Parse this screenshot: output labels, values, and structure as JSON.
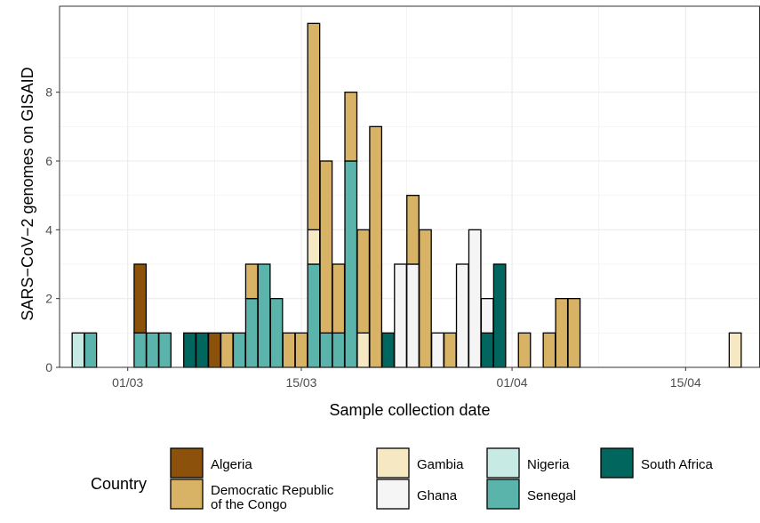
{
  "chart_data": {
    "type": "bar",
    "stacked": true,
    "xlabel": "Sample collection date",
    "ylabel": "SARS−CoV−2 genomes on GISAID",
    "x_ticks": [
      "01/03",
      "15/03",
      "01/04",
      "15/04"
    ],
    "x_tick_days": [
      1,
      15,
      32,
      46
    ],
    "y_ticks": [
      "0",
      "2",
      "4",
      "6",
      "8"
    ],
    "ylim": [
      0,
      10.5
    ],
    "xlim_days": [
      -4.5,
      52
    ],
    "grid": true,
    "legend_position": "bottom",
    "legend_title": "Country",
    "series": [
      {
        "name": "Algeria",
        "color": "#8c510a"
      },
      {
        "name": "Democratic Republic of the Congo",
        "color": "#d8b365"
      },
      {
        "name": "Gambia",
        "color": "#f6e8c3"
      },
      {
        "name": "Ghana",
        "color": "#f5f5f5"
      },
      {
        "name": "Nigeria",
        "color": "#c7eae5"
      },
      {
        "name": "Senegal",
        "color": "#5ab4ac"
      },
      {
        "name": "South Africa",
        "color": "#01665e"
      }
    ],
    "legend_labels": [
      [
        "Algeria"
      ],
      [
        "Democratic Republic",
        "of the Congo"
      ],
      [
        "Gambia"
      ],
      [
        "Ghana"
      ],
      [
        "Nigeria"
      ],
      [
        "Senegal"
      ],
      [
        "South Africa"
      ]
    ],
    "bars": [
      {
        "day": -3,
        "counts": {
          "Nigeria": 1
        }
      },
      {
        "day": -2,
        "counts": {
          "Senegal": 1
        }
      },
      {
        "day": 2,
        "counts": {
          "Senegal": 1,
          "Algeria": 2
        }
      },
      {
        "day": 3,
        "counts": {
          "Senegal": 1
        }
      },
      {
        "day": 4,
        "counts": {
          "Senegal": 1
        }
      },
      {
        "day": 6,
        "counts": {
          "South Africa": 1
        }
      },
      {
        "day": 7,
        "counts": {
          "South Africa": 1
        }
      },
      {
        "day": 8,
        "counts": {
          "Algeria": 1
        }
      },
      {
        "day": 9,
        "counts": {
          "Democratic Republic of the Congo": 1
        }
      },
      {
        "day": 10,
        "counts": {
          "Senegal": 1
        }
      },
      {
        "day": 11,
        "counts": {
          "Senegal": 2,
          "Democratic Republic of the Congo": 1
        }
      },
      {
        "day": 12,
        "counts": {
          "Senegal": 3
        }
      },
      {
        "day": 13,
        "counts": {
          "Senegal": 2
        }
      },
      {
        "day": 14,
        "counts": {
          "Democratic Republic of the Congo": 1
        }
      },
      {
        "day": 15,
        "counts": {
          "Democratic Republic of the Congo": 1
        }
      },
      {
        "day": 16,
        "counts": {
          "Senegal": 3,
          "Gambia": 1,
          "Democratic Republic of the Congo": 6
        }
      },
      {
        "day": 17,
        "counts": {
          "Senegal": 1,
          "Democratic Republic of the Congo": 5
        }
      },
      {
        "day": 18,
        "counts": {
          "Senegal": 1,
          "Democratic Republic of the Congo": 2
        }
      },
      {
        "day": 19,
        "counts": {
          "Senegal": 6,
          "Democratic Republic of the Congo": 2
        }
      },
      {
        "day": 20,
        "counts": {
          "Gambia": 1,
          "Democratic Republic of the Congo": 3
        }
      },
      {
        "day": 21,
        "counts": {
          "Democratic Republic of the Congo": 7
        }
      },
      {
        "day": 22,
        "counts": {
          "South Africa": 1
        }
      },
      {
        "day": 23,
        "counts": {
          "Ghana": 3
        }
      },
      {
        "day": 24,
        "counts": {
          "Ghana": 3,
          "Democratic Republic of the Congo": 2
        }
      },
      {
        "day": 25,
        "counts": {
          "Democratic Republic of the Congo": 4
        }
      },
      {
        "day": 26,
        "counts": {
          "Ghana": 1
        }
      },
      {
        "day": 27,
        "counts": {
          "Democratic Republic of the Congo": 1
        }
      },
      {
        "day": 28,
        "counts": {
          "Ghana": 3
        }
      },
      {
        "day": 29,
        "counts": {
          "Ghana": 4
        }
      },
      {
        "day": 30,
        "counts": {
          "South Africa": 1,
          "Ghana": 1
        }
      },
      {
        "day": 31,
        "counts": {
          "South Africa": 3
        }
      },
      {
        "day": 33,
        "counts": {
          "Democratic Republic of the Congo": 1
        }
      },
      {
        "day": 35,
        "counts": {
          "Democratic Republic of the Congo": 1
        }
      },
      {
        "day": 36,
        "counts": {
          "Democratic Republic of the Congo": 2
        }
      },
      {
        "day": 37,
        "counts": {
          "Democratic Republic of the Congo": 2
        }
      },
      {
        "day": 50,
        "counts": {
          "Gambia": 1
        }
      }
    ]
  }
}
